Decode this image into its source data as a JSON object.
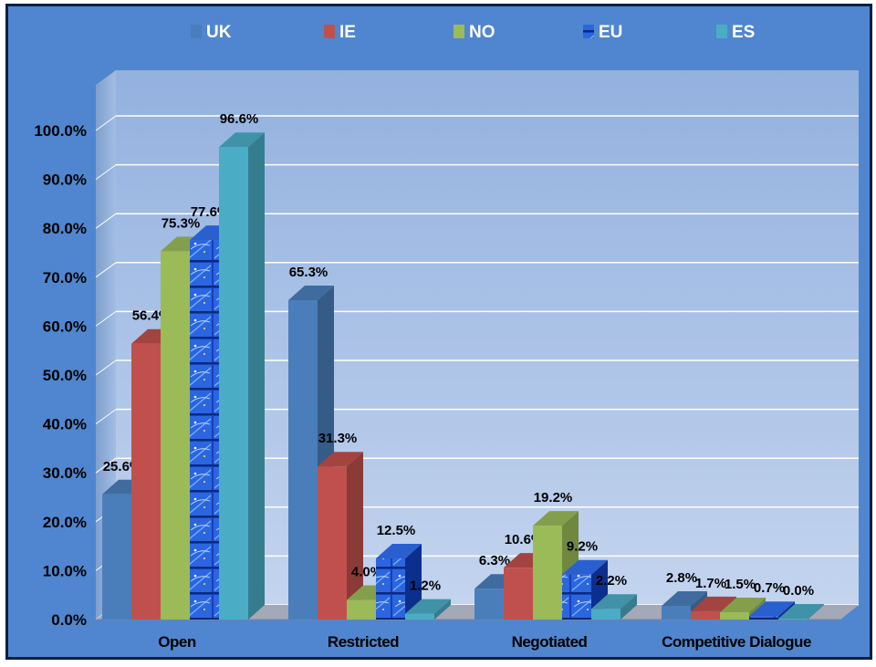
{
  "chart_data": {
    "type": "bar",
    "categories": [
      "Open",
      "Restricted",
      "Negotiated",
      "Competitive Dialogue"
    ],
    "series": [
      {
        "name": "UK",
        "color": "#4a7ebb",
        "values": [
          25.6,
          65.3,
          6.3,
          2.8
        ]
      },
      {
        "name": "IE",
        "color": "#c0504d",
        "values": [
          56.4,
          31.3,
          10.6,
          1.7
        ]
      },
      {
        "name": "NO",
        "color": "#9bbb59",
        "values": [
          75.3,
          4.0,
          19.2,
          1.5
        ]
      },
      {
        "name": "EU",
        "color": "#1f5fd4",
        "values": [
          77.6,
          12.5,
          9.2,
          0.7
        ]
      },
      {
        "name": "ES",
        "color": "#4bacc6",
        "values": [
          96.6,
          1.2,
          2.2,
          0.0
        ]
      }
    ],
    "data_labels": [
      [
        "25.6%",
        "65.3%",
        "6.3%",
        "2.8%"
      ],
      [
        "56.4%",
        "31.3%",
        "10.6%",
        "1.7%"
      ],
      [
        "75.3%",
        "4.0%",
        "19.2%",
        "1.5%"
      ],
      [
        "77.6%",
        "12.5%",
        "9.2%",
        "0.7%"
      ],
      [
        "96.6%",
        "1.2%",
        "2.2%",
        "0.0%"
      ]
    ],
    "y_ticks": [
      "0.0%",
      "10.0%",
      "20.0%",
      "30.0%",
      "40.0%",
      "50.0%",
      "60.0%",
      "70.0%",
      "80.0%",
      "90.0%",
      "100.0%"
    ],
    "ylim": [
      0,
      100
    ],
    "title": "",
    "xlabel": "",
    "ylabel": "",
    "grid": true,
    "legend_position": "top",
    "style": "3d-clustered-column"
  }
}
